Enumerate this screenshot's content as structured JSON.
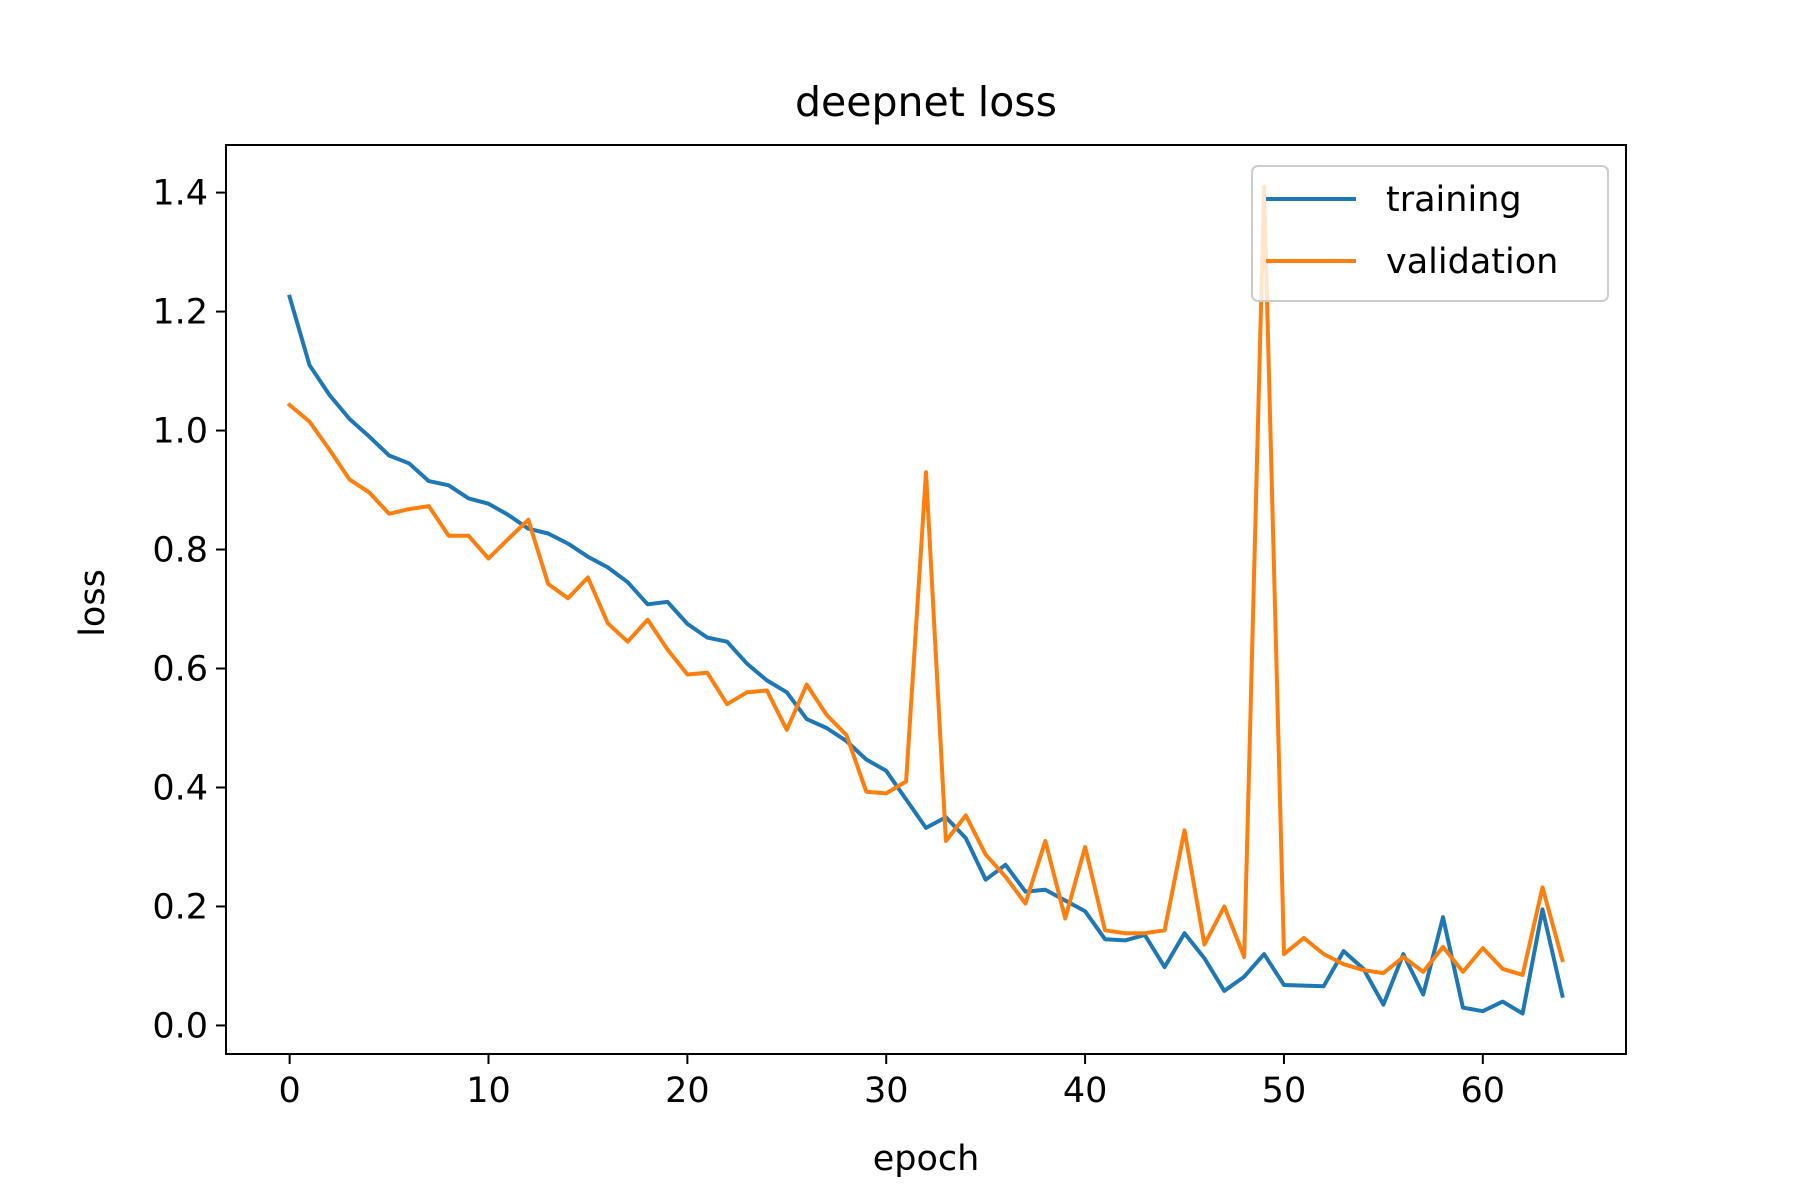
{
  "chart_data": {
    "type": "line",
    "title": "deepnet loss",
    "xlabel": "epoch",
    "ylabel": "loss",
    "xlim": [
      -3.2,
      67.2
    ],
    "ylim": [
      -0.048,
      1.48
    ],
    "xticks": [
      0,
      10,
      20,
      30,
      40,
      50,
      60
    ],
    "xtick_labels": [
      "0",
      "10",
      "20",
      "30",
      "40",
      "50",
      "60"
    ],
    "yticks": [
      0.0,
      0.2,
      0.4,
      0.6,
      0.8,
      1.0,
      1.2,
      1.4
    ],
    "ytick_labels": [
      "0.0",
      "0.2",
      "0.4",
      "0.6",
      "0.8",
      "1.0",
      "1.2",
      "1.4"
    ],
    "grid": false,
    "legend_position": "top-right",
    "x": [
      0,
      1,
      2,
      3,
      4,
      5,
      6,
      7,
      8,
      9,
      10,
      11,
      12,
      13,
      14,
      15,
      16,
      17,
      18,
      19,
      20,
      21,
      22,
      23,
      24,
      25,
      26,
      27,
      28,
      29,
      30,
      31,
      32,
      33,
      34,
      35,
      36,
      37,
      38,
      39,
      40,
      41,
      42,
      43,
      44,
      45,
      46,
      47,
      48,
      49,
      50,
      51,
      52,
      53,
      54,
      55,
      56,
      57,
      58,
      59,
      60,
      61,
      62,
      63,
      64
    ],
    "series": [
      {
        "name": "training",
        "color": "#1f77b4",
        "values": [
          1.225,
          1.11,
          1.06,
          1.02,
          0.99,
          0.958,
          0.945,
          0.915,
          0.908,
          0.886,
          0.877,
          0.858,
          0.835,
          0.827,
          0.81,
          0.788,
          0.77,
          0.745,
          0.708,
          0.712,
          0.675,
          0.652,
          0.645,
          0.608,
          0.58,
          0.56,
          0.515,
          0.5,
          0.478,
          0.447,
          0.428,
          0.38,
          0.332,
          0.35,
          0.315,
          0.245,
          0.27,
          0.225,
          0.228,
          0.21,
          0.192,
          0.145,
          0.143,
          0.152,
          0.098,
          0.155,
          0.113,
          0.058,
          0.082,
          0.12,
          0.068,
          0.067,
          0.066,
          0.125,
          0.095,
          0.035,
          0.12,
          0.052,
          0.182,
          0.03,
          0.024,
          0.04,
          0.02,
          0.195,
          0.05
        ]
      },
      {
        "name": "validation",
        "color": "#ff7f0e",
        "values": [
          1.043,
          1.015,
          0.968,
          0.918,
          0.896,
          0.86,
          0.868,
          0.873,
          0.823,
          0.823,
          0.785,
          0.818,
          0.85,
          0.742,
          0.718,
          0.753,
          0.676,
          0.645,
          0.682,
          0.632,
          0.59,
          0.593,
          0.54,
          0.56,
          0.563,
          0.497,
          0.573,
          0.522,
          0.488,
          0.393,
          0.39,
          0.41,
          0.93,
          0.31,
          0.353,
          0.287,
          0.25,
          0.205,
          0.31,
          0.18,
          0.3,
          0.16,
          0.155,
          0.155,
          0.16,
          0.328,
          0.136,
          0.2,
          0.115,
          1.41,
          0.12,
          0.147,
          0.12,
          0.103,
          0.093,
          0.088,
          0.115,
          0.09,
          0.132,
          0.09,
          0.13,
          0.095,
          0.085,
          0.232,
          0.11
        ]
      }
    ]
  }
}
